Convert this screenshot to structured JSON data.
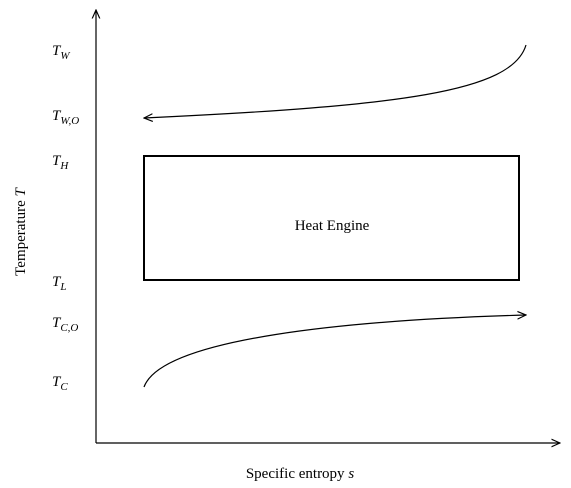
{
  "axes": {
    "x_label": {
      "text": "Specific entropy",
      "symbol": "s"
    },
    "y_label": {
      "text": "Temperature",
      "symbol": "T"
    }
  },
  "levels": [
    {
      "main": "T",
      "sub": "W"
    },
    {
      "main": "T",
      "sub": "W,O"
    },
    {
      "main": "T",
      "sub": "H"
    },
    {
      "main": "T",
      "sub": "L"
    },
    {
      "main": "T",
      "sub": "C,O"
    },
    {
      "main": "T",
      "sub": "C"
    }
  ],
  "engine": {
    "label": "Heat Engine"
  }
}
